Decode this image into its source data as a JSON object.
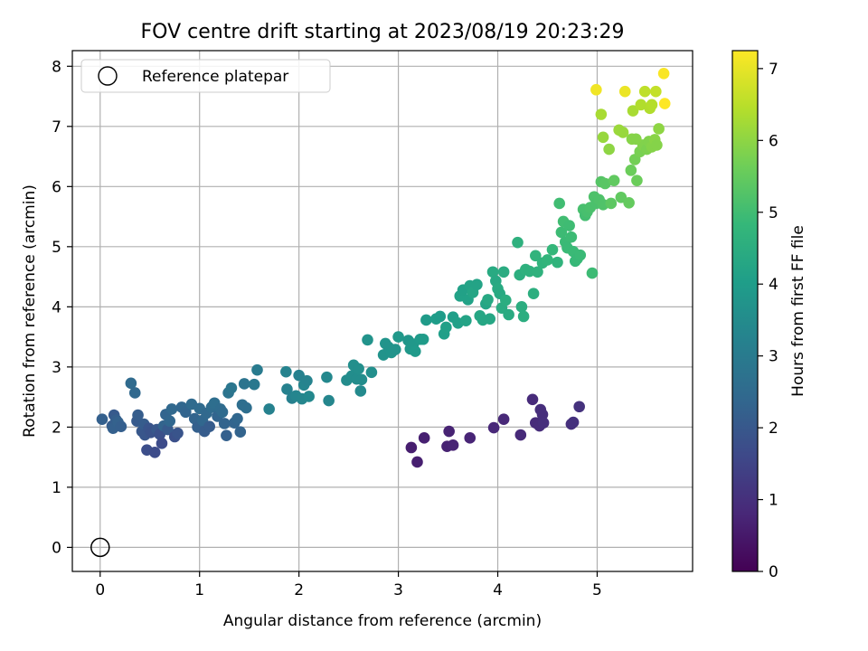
{
  "chart_data": {
    "type": "scatter",
    "title": "FOV centre drift starting at 2023/08/19 20:23:29",
    "xlabel": "Angular distance from reference (arcmin)",
    "ylabel": "Rotation from reference (arcmin)",
    "xlim": [
      -0.28,
      5.96
    ],
    "ylim": [
      -0.4,
      8.26
    ],
    "xticks": [
      "0",
      "1",
      "2",
      "3",
      "4",
      "5"
    ],
    "yticks": [
      "0",
      "1",
      "2",
      "3",
      "4",
      "5",
      "6",
      "7",
      "8"
    ],
    "grid": true,
    "legend": {
      "position": "top-left",
      "entries": [
        "Reference platepar"
      ]
    },
    "reference_point": {
      "x": 0,
      "y": 0
    },
    "colorbar": {
      "label": "Hours from first FF file",
      "range": [
        0,
        7.25
      ],
      "ticks": [
        "0",
        "1",
        "2",
        "3",
        "4",
        "5",
        "6",
        "7"
      ],
      "colormap": "viridis"
    },
    "series": [
      {
        "points": [
          [
            3.13,
            1.66
          ],
          [
            3.19,
            1.42
          ],
          [
            3.26,
            1.82
          ],
          [
            3.49,
            1.68
          ],
          [
            3.51,
            1.93
          ],
          [
            3.55,
            1.7
          ],
          [
            3.72,
            1.82
          ],
          [
            3.96,
            1.99
          ],
          [
            4.06,
            2.13
          ],
          [
            4.23,
            1.87
          ],
          [
            4.35,
            2.46
          ],
          [
            4.38,
            2.07
          ],
          [
            4.42,
            2.02
          ],
          [
            4.43,
            2.29
          ],
          [
            4.45,
            2.21
          ],
          [
            4.46,
            2.07
          ],
          [
            4.74,
            2.05
          ],
          [
            4.76,
            2.08
          ],
          [
            4.82,
            2.34
          ],
          [
            0.02,
            2.13
          ],
          [
            0.12,
            2.02
          ],
          [
            0.13,
            1.98
          ],
          [
            0.14,
            2.2
          ],
          [
            0.16,
            2.12
          ],
          [
            0.18,
            2.08
          ],
          [
            0.21,
            2.01
          ],
          [
            0.31,
            2.73
          ],
          [
            0.35,
            2.57
          ],
          [
            0.37,
            2.1
          ],
          [
            0.38,
            2.2
          ],
          [
            0.42,
            1.93
          ],
          [
            0.44,
            2.05
          ],
          [
            0.45,
            1.87
          ],
          [
            0.47,
            1.62
          ],
          [
            0.49,
            1.98
          ],
          [
            0.51,
            1.91
          ],
          [
            0.55,
            1.58
          ],
          [
            0.57,
            1.96
          ],
          [
            0.6,
            1.88
          ],
          [
            0.62,
            1.73
          ],
          [
            0.64,
            2.02
          ],
          [
            0.66,
            2.21
          ],
          [
            0.68,
            1.96
          ],
          [
            0.7,
            2.1
          ],
          [
            0.72,
            2.3
          ],
          [
            0.75,
            1.84
          ],
          [
            0.78,
            1.9
          ],
          [
            0.82,
            2.33
          ],
          [
            0.86,
            2.25
          ],
          [
            0.92,
            2.38
          ],
          [
            0.95,
            2.14
          ],
          [
            0.98,
            2.0
          ],
          [
            1.0,
            2.31
          ],
          [
            1.03,
            2.11
          ],
          [
            1.05,
            1.93
          ],
          [
            1.07,
            2.23
          ],
          [
            1.1,
            2.01
          ],
          [
            1.12,
            2.33
          ],
          [
            1.15,
            2.4
          ],
          [
            1.18,
            2.18
          ],
          [
            1.21,
            2.3
          ],
          [
            1.23,
            2.25
          ],
          [
            1.25,
            2.06
          ],
          [
            1.27,
            1.86
          ],
          [
            1.29,
            2.57
          ],
          [
            1.32,
            2.65
          ],
          [
            1.35,
            2.07
          ],
          [
            1.38,
            2.14
          ],
          [
            1.41,
            1.92
          ],
          [
            1.43,
            2.37
          ],
          [
            1.45,
            2.72
          ],
          [
            1.47,
            2.32
          ],
          [
            1.55,
            2.71
          ],
          [
            1.58,
            2.95
          ],
          [
            1.7,
            2.3
          ],
          [
            1.87,
            2.92
          ],
          [
            1.88,
            2.63
          ],
          [
            1.93,
            2.48
          ],
          [
            1.97,
            2.52
          ],
          [
            2.0,
            2.86
          ],
          [
            2.03,
            2.47
          ],
          [
            2.05,
            2.7
          ],
          [
            2.08,
            2.77
          ],
          [
            2.1,
            2.51
          ],
          [
            2.28,
            2.83
          ],
          [
            2.3,
            2.44
          ],
          [
            2.48,
            2.78
          ],
          [
            2.53,
            2.85
          ],
          [
            2.55,
            3.03
          ],
          [
            2.58,
            2.8
          ],
          [
            2.6,
            2.97
          ],
          [
            2.62,
            2.6
          ],
          [
            2.63,
            2.79
          ],
          [
            2.69,
            3.45
          ],
          [
            2.73,
            2.91
          ],
          [
            2.85,
            3.2
          ],
          [
            2.87,
            3.39
          ],
          [
            2.9,
            3.33
          ],
          [
            2.93,
            3.24
          ],
          [
            2.97,
            3.29
          ],
          [
            3.0,
            3.5
          ],
          [
            3.1,
            3.44
          ],
          [
            3.12,
            3.3
          ],
          [
            3.15,
            3.38
          ],
          [
            3.17,
            3.26
          ],
          [
            3.22,
            3.46
          ],
          [
            3.25,
            3.46
          ],
          [
            3.28,
            3.78
          ],
          [
            3.38,
            3.8
          ],
          [
            3.42,
            3.84
          ],
          [
            3.46,
            3.55
          ],
          [
            3.48,
            3.66
          ],
          [
            3.55,
            3.83
          ],
          [
            3.6,
            3.73
          ],
          [
            3.62,
            4.18
          ],
          [
            3.65,
            4.28
          ],
          [
            3.68,
            3.77
          ],
          [
            3.7,
            4.12
          ],
          [
            3.72,
            4.35
          ],
          [
            3.75,
            4.24
          ],
          [
            3.79,
            4.37
          ],
          [
            3.82,
            3.85
          ],
          [
            3.85,
            3.78
          ],
          [
            3.88,
            4.05
          ],
          [
            3.9,
            4.12
          ],
          [
            3.92,
            3.8
          ],
          [
            3.95,
            4.58
          ],
          [
            3.98,
            4.43
          ],
          [
            4.0,
            4.3
          ],
          [
            4.02,
            4.22
          ],
          [
            4.04,
            3.98
          ],
          [
            4.06,
            4.58
          ],
          [
            4.08,
            4.11
          ],
          [
            4.11,
            3.87
          ],
          [
            4.2,
            5.07
          ],
          [
            4.22,
            4.53
          ],
          [
            4.24,
            4.0
          ],
          [
            4.26,
            3.84
          ],
          [
            4.28,
            4.62
          ],
          [
            4.32,
            4.59
          ],
          [
            4.36,
            4.22
          ],
          [
            4.38,
            4.85
          ],
          [
            4.4,
            4.58
          ],
          [
            4.45,
            4.73
          ],
          [
            4.5,
            4.78
          ],
          [
            4.55,
            4.95
          ],
          [
            4.6,
            4.74
          ],
          [
            4.62,
            5.72
          ],
          [
            4.64,
            5.24
          ],
          [
            4.66,
            5.42
          ],
          [
            4.68,
            5.08
          ],
          [
            4.7,
            4.98
          ],
          [
            4.72,
            5.35
          ],
          [
            4.74,
            5.16
          ],
          [
            4.76,
            4.92
          ],
          [
            4.78,
            4.76
          ],
          [
            4.8,
            4.8
          ],
          [
            4.83,
            4.86
          ],
          [
            4.86,
            5.62
          ],
          [
            4.88,
            5.52
          ],
          [
            4.9,
            5.58
          ],
          [
            4.93,
            5.65
          ],
          [
            4.95,
            4.56
          ],
          [
            4.97,
            5.83
          ],
          [
            4.99,
            5.72
          ],
          [
            5.02,
            5.78
          ],
          [
            5.04,
            6.08
          ],
          [
            5.06,
            5.7
          ],
          [
            5.08,
            6.05
          ],
          [
            5.14,
            5.72
          ],
          [
            5.17,
            6.1
          ],
          [
            5.24,
            5.82
          ],
          [
            5.32,
            5.73
          ],
          [
            5.34,
            6.27
          ],
          [
            5.38,
            6.45
          ],
          [
            5.4,
            6.1
          ],
          [
            5.43,
            6.58
          ],
          [
            5.46,
            6.69
          ],
          [
            5.5,
            6.62
          ],
          [
            5.52,
            6.75
          ],
          [
            5.55,
            6.66
          ],
          [
            5.58,
            6.78
          ],
          [
            5.6,
            6.69
          ],
          [
            5.62,
            6.96
          ],
          [
            5.35,
            6.79
          ],
          [
            5.39,
            6.79
          ],
          [
            5.06,
            6.82
          ],
          [
            5.12,
            6.62
          ],
          [
            5.22,
            6.94
          ],
          [
            5.26,
            6.9
          ],
          [
            5.36,
            7.26
          ],
          [
            5.44,
            7.36
          ],
          [
            5.48,
            7.58
          ],
          [
            5.53,
            7.3
          ],
          [
            5.55,
            7.36
          ],
          [
            5.59,
            7.58
          ],
          [
            5.04,
            7.2
          ],
          [
            4.99,
            7.61
          ],
          [
            5.28,
            7.58
          ],
          [
            5.67,
            7.88
          ],
          [
            5.68,
            7.38
          ]
        ],
        "hours": [
          0.6,
          0.62,
          0.65,
          0.68,
          0.7,
          0.72,
          0.75,
          0.8,
          0.82,
          0.85,
          0.88,
          0.9,
          0.92,
          0.94,
          0.96,
          0.98,
          1.0,
          1.02,
          1.06,
          2.2,
          2.1,
          2.22,
          2.05,
          2.15,
          2.25,
          2.18,
          2.5,
          2.45,
          2.05,
          2.12,
          2.0,
          2.1,
          1.95,
          1.75,
          1.9,
          1.85,
          1.7,
          2.0,
          1.8,
          1.7,
          2.3,
          2.35,
          2.05,
          2.4,
          2.45,
          1.8,
          1.9,
          2.4,
          2.35,
          2.5,
          2.3,
          2.2,
          2.5,
          2.4,
          2.1,
          2.45,
          2.1,
          2.55,
          2.6,
          2.35,
          2.55,
          2.5,
          2.3,
          2.2,
          2.8,
          2.85,
          2.35,
          2.4,
          2.3,
          2.6,
          2.8,
          2.6,
          2.9,
          3.0,
          3.2,
          3.25,
          3.2,
          3.15,
          3.3,
          3.2,
          3.35,
          3.3,
          3.25,
          3.4,
          3.4,
          3.35,
          3.5,
          3.55,
          3.6,
          3.55,
          3.6,
          3.45,
          3.55,
          3.7,
          3.6,
          3.7,
          3.75,
          3.7,
          3.75,
          3.7,
          3.85,
          3.8,
          3.85,
          3.85,
          3.9,
          3.9,
          3.95,
          3.95,
          4.0,
          3.98,
          4.05,
          4.1,
          4.05,
          4.1,
          4.15,
          4.12,
          4.2,
          4.15,
          4.2,
          4.25,
          4.2,
          4.28,
          4.3,
          4.25,
          4.35,
          4.3,
          4.4,
          4.35,
          4.4,
          4.38,
          4.45,
          4.45,
          4.5,
          4.42,
          4.6,
          4.55,
          4.5,
          4.5,
          4.6,
          4.62,
          4.55,
          4.7,
          4.65,
          4.7,
          4.75,
          4.8,
          4.7,
          5.0,
          4.95,
          5.0,
          4.92,
          4.9,
          4.98,
          4.95,
          4.9,
          4.85,
          4.88,
          4.9,
          5.1,
          5.05,
          5.1,
          5.15,
          4.95,
          5.2,
          5.15,
          5.2,
          5.3,
          5.22,
          5.35,
          5.4,
          5.45,
          5.45,
          5.5,
          5.6,
          5.7,
          5.6,
          5.75,
          5.85,
          5.8,
          5.85,
          5.9,
          5.95,
          5.9,
          6.0,
          5.92,
          5.9,
          6.1,
          6.0,
          6.15,
          6.12,
          6.3,
          6.4,
          6.55,
          6.4,
          6.45,
          6.6,
          6.3,
          7.1,
          7.05,
          7.2,
          7.25
        ]
      }
    ]
  }
}
